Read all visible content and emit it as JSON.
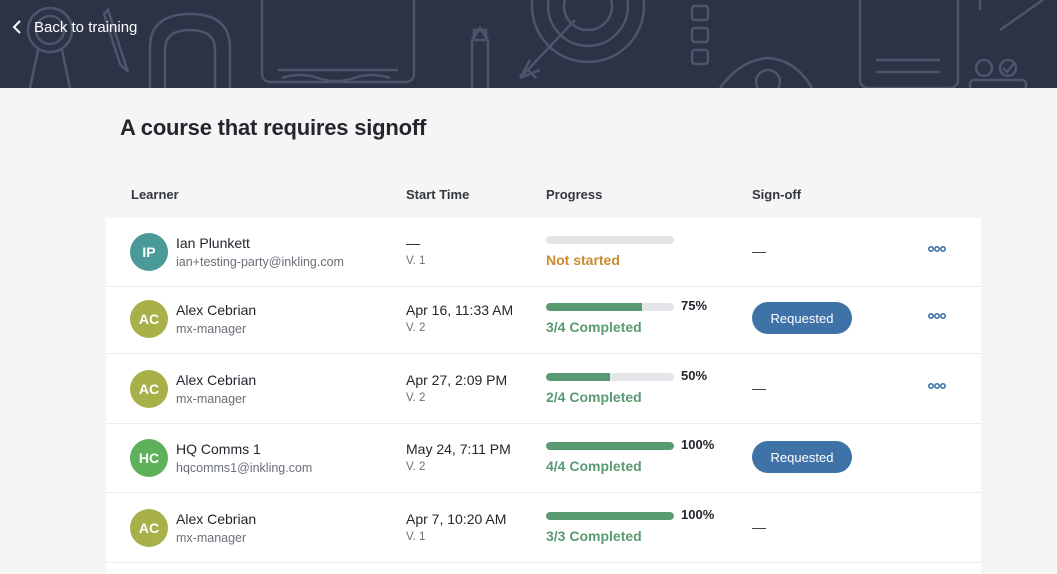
{
  "header": {
    "back_label": "Back to training"
  },
  "page": {
    "title": "A course that requires signoff"
  },
  "table": {
    "columns": {
      "learner": "Learner",
      "start_time": "Start Time",
      "progress": "Progress",
      "signoff": "Sign-off"
    },
    "rows": [
      {
        "initials": "IP",
        "avatar_color": "#4a9a9a",
        "name": "Ian Plunkett",
        "sub": "ian+testing-party@inkling.com",
        "start_time": "—",
        "version": "V. 1",
        "progress": 0,
        "progress_pct": "",
        "status": "Not started",
        "signoff": "—",
        "has_menu": true
      },
      {
        "initials": "AC",
        "avatar_color": "#a8b04a",
        "name": "Alex Cebrian",
        "sub": "mx-manager",
        "start_time": "Apr 16, 11:33 AM",
        "version": "V. 2",
        "progress": 0.75,
        "progress_pct": "75%",
        "status": "3/4 Completed",
        "signoff": "Requested",
        "has_menu": true
      },
      {
        "initials": "AC",
        "avatar_color": "#a8b04a",
        "name": "Alex Cebrian",
        "sub": "mx-manager",
        "start_time": "Apr 27, 2:09 PM",
        "version": "V. 2",
        "progress": 0.5,
        "progress_pct": "50%",
        "status": "2/4 Completed",
        "signoff": "—",
        "has_menu": true
      },
      {
        "initials": "HC",
        "avatar_color": "#5fb05a",
        "name": "HQ Comms 1",
        "sub": "hqcomms1@inkling.com",
        "start_time": "May 24, 7:11 PM",
        "version": "V. 2",
        "progress": 1,
        "progress_pct": "100%",
        "status": "4/4 Completed",
        "signoff": "Requested",
        "has_menu": false
      },
      {
        "initials": "AC",
        "avatar_color": "#a8b04a",
        "name": "Alex Cebrian",
        "sub": "mx-manager",
        "start_time": "Apr 7, 10:20 AM",
        "version": "V. 1",
        "progress": 1,
        "progress_pct": "100%",
        "status": "3/3 Completed",
        "signoff": "—",
        "has_menu": false
      }
    ]
  },
  "colors": {
    "banner": "#2c3346",
    "progress_fill": "#5a9a73",
    "not_started": "#c98b2e",
    "requested_button": "#3f73a8"
  }
}
